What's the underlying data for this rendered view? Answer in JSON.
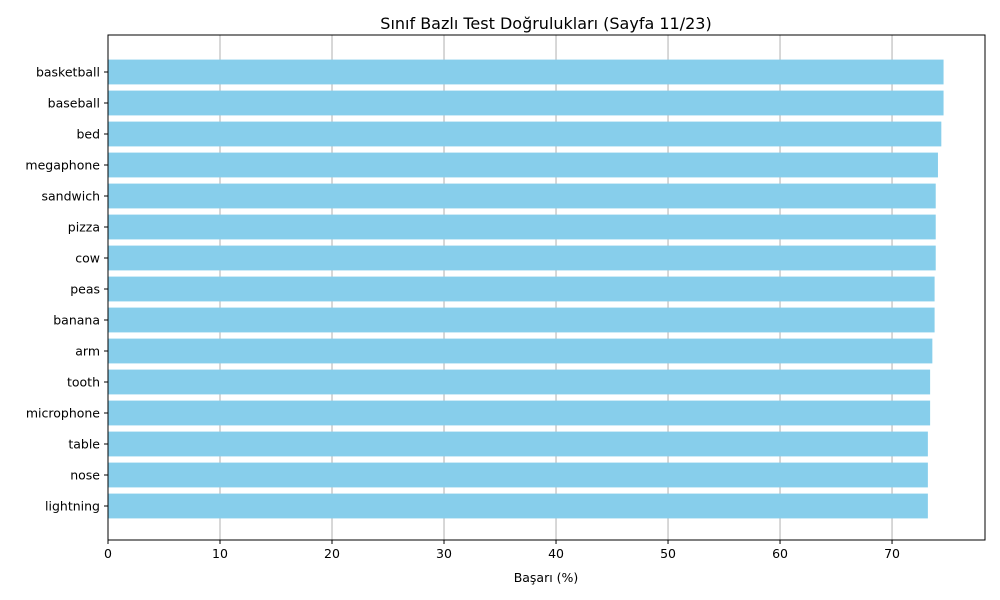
{
  "chart_data": {
    "type": "bar",
    "orientation": "horizontal",
    "title": "Sınıf Bazlı Test Doğrulukları (Sayfa 11/23)",
    "xlabel": "Başarı (%)",
    "ylabel": "",
    "xlim": [
      0,
      78.3
    ],
    "xticks": [
      0,
      10,
      20,
      30,
      40,
      50,
      60,
      70
    ],
    "grid": "x-axis vertical lines",
    "bar_color": "#87CEEB",
    "categories": [
      "basketball",
      "baseball",
      "bed",
      "megaphone",
      "sandwich",
      "pizza",
      "cow",
      "peas",
      "banana",
      "arm",
      "tooth",
      "microphone",
      "table",
      "nose",
      "lightning"
    ],
    "values": [
      74.6,
      74.6,
      74.4,
      74.1,
      73.9,
      73.9,
      73.9,
      73.8,
      73.8,
      73.6,
      73.4,
      73.4,
      73.2,
      73.2,
      73.2
    ]
  }
}
